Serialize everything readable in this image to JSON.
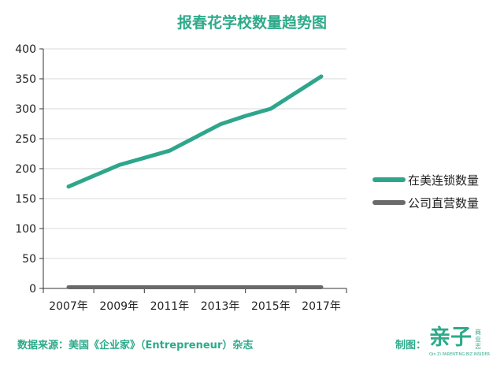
{
  "header": {
    "title": "报春花学校数量趋势图"
  },
  "footer": {
    "source": "数据来源：美国《企业家》（Entrepreneur）杂志",
    "credit_label": "制图：",
    "logo_main": "亲子",
    "logo_side": "商业志",
    "logo_sub": "Qin Zi PARENTING BIZ INSIDER"
  },
  "colors": {
    "accent": "#2daa8a",
    "series_1": "#2fa68c",
    "series_2": "#6a6a6a",
    "grid": "#d9d9d9"
  },
  "chart_data": {
    "type": "line",
    "title": "报春花学校数量趋势图",
    "xlabel": "",
    "ylabel": "",
    "x": [
      "2007年",
      "2008年",
      "2009年",
      "2010年",
      "2011年",
      "2012年",
      "2013年",
      "2014年",
      "2015年",
      "2016年",
      "2017年"
    ],
    "x_tick_labels": [
      "2007年",
      "2009年",
      "2011年",
      "2013年",
      "2015年",
      "2017年"
    ],
    "y_ticks": [
      0,
      50,
      100,
      150,
      200,
      250,
      300,
      350,
      400
    ],
    "ylim": [
      0,
      400
    ],
    "grid": true,
    "legend_position": "right",
    "series": [
      {
        "name": "在美连锁数量",
        "values": [
          170,
          188,
          206,
          218,
          230,
          252,
          274,
          288,
          300,
          327,
          354
        ]
      },
      {
        "name": "公司直营数量",
        "values": [
          2,
          2,
          2,
          2,
          2,
          2,
          2,
          2,
          2,
          2,
          2
        ]
      }
    ]
  }
}
